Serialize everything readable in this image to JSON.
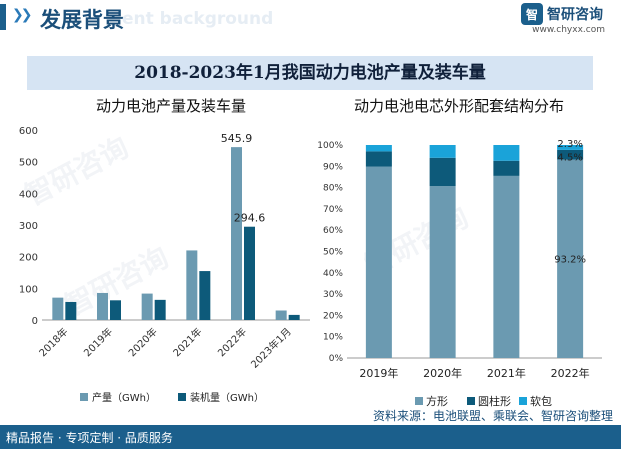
{
  "header": {
    "title": "发展背景",
    "title_en": "ent background",
    "logo_text": "智研咨询",
    "logo_url": "www.chyxx.com"
  },
  "banner_title": "2018-2023年1月我国动力电池产量及装车量",
  "watermark_text": "智研咨询",
  "footer": {
    "left_text": "精品报告 · 专项定制 · 品质服务",
    "source_text": "资料来源：电池联盟、乘联会、智研咨询整理"
  },
  "colors": {
    "brand": "#1b5f8c",
    "series_production": "#6b9ab1",
    "series_installed": "#0d5a7a",
    "square": "#6b9ab1",
    "cylinder": "#0d5a7a",
    "pouch": "#1aa3d9"
  },
  "chart_data": [
    {
      "type": "bar",
      "title": "动力电池产量及装车量",
      "categories": [
        "2018年",
        "2019年",
        "2020年",
        "2021年",
        "2022年",
        "2023年1月"
      ],
      "series": [
        {
          "name": "产量（GWh）",
          "values": [
            70.6,
            85.4,
            83.4,
            219.7,
            545.9,
            30.0
          ]
        },
        {
          "name": "装机量（GWh）",
          "values": [
            57.0,
            62.2,
            63.6,
            154.5,
            294.6,
            16.1
          ]
        }
      ],
      "data_labels": [
        {
          "series": 0,
          "index": 4,
          "text": "545.9"
        },
        {
          "series": 1,
          "index": 4,
          "text": "294.6"
        }
      ],
      "yticks": [
        "0",
        "100",
        "200",
        "300",
        "400",
        "500",
        "600"
      ],
      "ylim": [
        0,
        600
      ],
      "grid": false,
      "legend_position": "bottom"
    },
    {
      "type": "bar",
      "stacked": true,
      "title": "动力电池电芯外形配套结构分布",
      "categories": [
        "2019年",
        "2020年",
        "2021年",
        "2022年"
      ],
      "series": [
        {
          "name": "方形",
          "values": [
            89.9,
            80.7,
            85.5,
            93.2
          ]
        },
        {
          "name": "圆柱形",
          "values": [
            7.1,
            13.3,
            7.1,
            4.5
          ]
        },
        {
          "name": "软包",
          "values": [
            3.0,
            6.0,
            7.4,
            2.3
          ]
        }
      ],
      "data_labels": [
        {
          "series": 0,
          "index": 3,
          "text": "93.2%"
        },
        {
          "series": 1,
          "index": 3,
          "text": "4.5%"
        },
        {
          "series": 2,
          "index": 3,
          "text": "2.3%"
        }
      ],
      "yticks": [
        "0%",
        "10%",
        "20%",
        "30%",
        "40%",
        "50%",
        "60%",
        "70%",
        "80%",
        "90%",
        "100%"
      ],
      "ylim": [
        0,
        100
      ],
      "grid": false,
      "legend_position": "bottom"
    }
  ]
}
